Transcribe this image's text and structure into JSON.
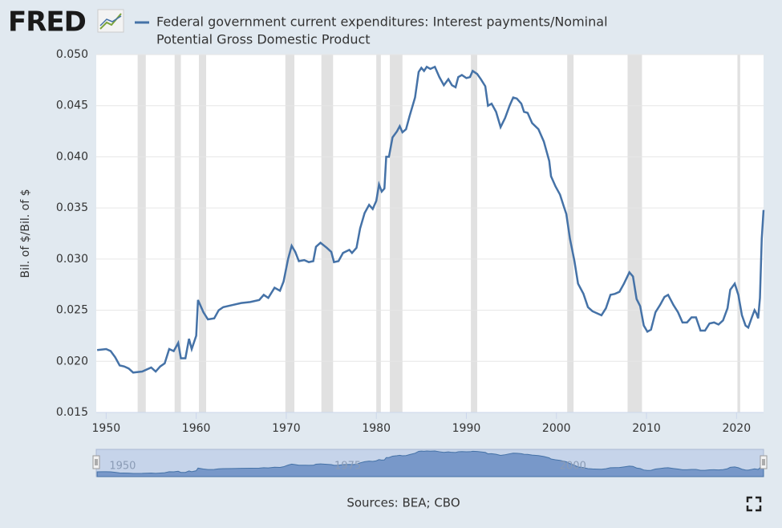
{
  "brand": "FRED",
  "chart_data": {
    "type": "line",
    "series": [
      {
        "name": "Federal government current expenditures: Interest payments/Nominal Potential Gross Domestic Product",
        "color": "#4572a7",
        "x": [
          1949,
          1950,
          1950.5,
          1951,
          1951.5,
          1952,
          1952.5,
          1953,
          1954,
          1955,
          1955.5,
          1956,
          1956.5,
          1957,
          1957.5,
          1958,
          1958.3,
          1958.8,
          1959.2,
          1959.5,
          1960,
          1960.2,
          1960.8,
          1961.3,
          1962,
          1962.5,
          1963,
          1964,
          1965,
          1966,
          1967,
          1967.5,
          1968,
          1968.7,
          1969.3,
          1969.7,
          1970.2,
          1970.6,
          1971,
          1971.4,
          1972,
          1972.5,
          1973,
          1973.3,
          1973.8,
          1974.5,
          1975,
          1975.3,
          1975.8,
          1976.3,
          1977,
          1977.3,
          1977.8,
          1978.2,
          1978.7,
          1979.2,
          1979.6,
          1980,
          1980.3,
          1980.6,
          1980.9,
          1981.1,
          1981.4,
          1981.8,
          1982.3,
          1982.6,
          1982.9,
          1983.3,
          1983.7,
          1984.3,
          1984.7,
          1985,
          1985.3,
          1985.6,
          1986,
          1986.5,
          1987,
          1987.5,
          1988,
          1988.4,
          1988.8,
          1989.1,
          1989.5,
          1990,
          1990.4,
          1990.7,
          1991.2,
          1991.6,
          1992.1,
          1992.4,
          1992.8,
          1993.3,
          1993.8,
          1994.3,
          1994.8,
          1995.2,
          1995.6,
          1996.1,
          1996.4,
          1996.8,
          1997.3,
          1998,
          1998.6,
          1999.2,
          1999.4,
          1999.9,
          2000.4,
          2000.8,
          2001.1,
          2001.5,
          2002,
          2002.4,
          2003,
          2003.5,
          2004,
          2004.5,
          2005,
          2005.5,
          2006,
          2006.5,
          2007,
          2007.5,
          2008.1,
          2008.5,
          2008.9,
          2009.3,
          2009.7,
          2010.1,
          2010.5,
          2011,
          2011.5,
          2012,
          2012.4,
          2013,
          2013.5,
          2014,
          2014.5,
          2015,
          2015.5,
          2016,
          2016.5,
          2017,
          2017.5,
          2018,
          2018.5,
          2019,
          2019.3,
          2019.8,
          2020.2,
          2020.6,
          2021,
          2021.3,
          2021.7,
          2022,
          2022.2,
          2022.4,
          2022.6,
          2022.8,
          2023
        ],
        "values": [
          0.0211,
          0.0212,
          0.021,
          0.0204,
          0.0196,
          0.0195,
          0.0193,
          0.0189,
          0.019,
          0.0194,
          0.019,
          0.0195,
          0.0198,
          0.0212,
          0.021,
          0.0218,
          0.0203,
          0.0203,
          0.0222,
          0.0212,
          0.0225,
          0.026,
          0.0248,
          0.0241,
          0.0242,
          0.025,
          0.0253,
          0.0255,
          0.0257,
          0.0258,
          0.026,
          0.0265,
          0.0262,
          0.0272,
          0.0269,
          0.0278,
          0.03,
          0.0313,
          0.0307,
          0.0298,
          0.0299,
          0.0297,
          0.0298,
          0.0312,
          0.0316,
          0.0311,
          0.0307,
          0.0297,
          0.0298,
          0.0306,
          0.0309,
          0.0306,
          0.0311,
          0.033,
          0.0345,
          0.0353,
          0.0349,
          0.0357,
          0.0373,
          0.0366,
          0.0369,
          0.04,
          0.04,
          0.0419,
          0.0425,
          0.043,
          0.0424,
          0.0427,
          0.044,
          0.0458,
          0.0483,
          0.0487,
          0.0484,
          0.0488,
          0.0486,
          0.0488,
          0.0478,
          0.047,
          0.0476,
          0.047,
          0.0468,
          0.0478,
          0.048,
          0.0477,
          0.0478,
          0.0484,
          0.0481,
          0.0476,
          0.0469,
          0.045,
          0.0452,
          0.0444,
          0.0429,
          0.0438,
          0.045,
          0.0458,
          0.0457,
          0.0452,
          0.0444,
          0.0443,
          0.0433,
          0.0427,
          0.0415,
          0.0396,
          0.0381,
          0.0371,
          0.0363,
          0.0352,
          0.0344,
          0.032,
          0.0298,
          0.0276,
          0.0266,
          0.0253,
          0.0249,
          0.0247,
          0.0245,
          0.0252,
          0.0265,
          0.0266,
          0.0268,
          0.0276,
          0.0287,
          0.0283,
          0.0261,
          0.0254,
          0.0235,
          0.0229,
          0.0231,
          0.0248,
          0.0255,
          0.0263,
          0.0265,
          0.0255,
          0.0248,
          0.0238,
          0.0238,
          0.0243,
          0.0243,
          0.023,
          0.023,
          0.0237,
          0.0238,
          0.0236,
          0.024,
          0.0252,
          0.027,
          0.0276,
          0.0265,
          0.0245,
          0.0235,
          0.0233,
          0.0243,
          0.025,
          0.0247,
          0.0242,
          0.0262,
          0.032,
          0.0348
        ]
      }
    ],
    "ylabel": "Bil. of $/Bil. of $",
    "xlim": [
      1948.9,
      2023
    ],
    "xticks": [
      1950,
      1960,
      1970,
      1980,
      1990,
      2000,
      2010,
      2020
    ],
    "ylim": [
      0.015,
      0.05
    ],
    "yticks": [
      {
        "value": 0.015,
        "label": "0.015"
      },
      {
        "value": 0.02,
        "label": "0.020"
      },
      {
        "value": 0.025,
        "label": "0.025"
      },
      {
        "value": 0.03,
        "label": "0.030"
      },
      {
        "value": 0.035,
        "label": "0.035"
      },
      {
        "value": 0.04,
        "label": "0.040"
      },
      {
        "value": 0.045,
        "label": "0.045"
      },
      {
        "value": 0.05,
        "label": "0.050"
      }
    ],
    "grid": true,
    "recessions": [
      [
        1953.5,
        1954.4
      ],
      [
        1957.6,
        1958.3
      ],
      [
        1960.3,
        1961.1
      ],
      [
        1969.9,
        1970.9
      ],
      [
        1973.9,
        1975.2
      ],
      [
        1980,
        1980.5
      ],
      [
        1981.5,
        1982.9
      ],
      [
        1990.5,
        1991.2
      ],
      [
        2001.2,
        2001.9
      ],
      [
        2007.9,
        2009.5
      ],
      [
        2020.1,
        2020.4
      ]
    ],
    "navigator_ticks": [
      1950,
      1975,
      2000
    ],
    "source": "Sources: BEA; CBO"
  }
}
